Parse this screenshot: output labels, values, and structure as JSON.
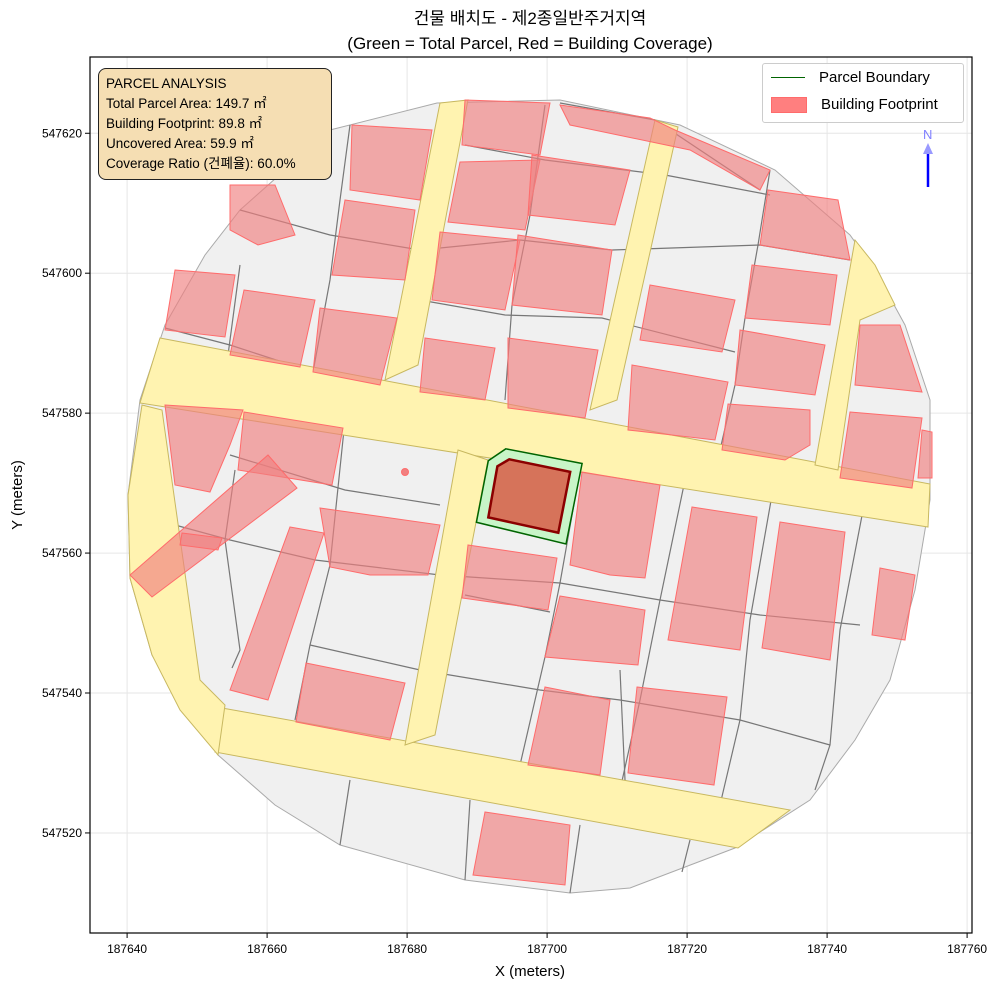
{
  "title": "건물 배치도 - 제2종일반주거지역",
  "subtitle": "(Green = Total Parcel, Red = Building Coverage)",
  "info": {
    "heading": "PARCEL ANALYSIS",
    "lines": [
      "Total Parcel Area: 149.7 ㎡",
      "Building Footprint: 89.8 ㎡",
      "Uncovered Area: 59.9 ㎡",
      "Coverage Ratio (건폐율): 60.0%"
    ]
  },
  "legend": [
    {
      "label": "Parcel Boundary",
      "color": "#006400"
    },
    {
      "label": "Building Footprint",
      "color": "#ff7f7f"
    }
  ],
  "north_label": "N",
  "chart_data": {
    "type": "map",
    "xlabel": "X (meters)",
    "ylabel": "Y (meters)",
    "xlim": [
      187634.7,
      187760.7
    ],
    "ylim": [
      547505.7,
      547630.9
    ],
    "xticks": [
      "187640",
      "187660",
      "187680",
      "187700",
      "187720",
      "187740",
      "187760"
    ],
    "yticks": [
      "547520",
      "547540",
      "547560",
      "547580",
      "547600",
      "547620"
    ],
    "grid": true,
    "legend_position": "top-right",
    "parcel": [
      [
        187694.1,
        547574.9
      ],
      [
        187705.0,
        547572.8
      ],
      [
        187702.7,
        547561.3
      ],
      [
        187689.9,
        547564.4
      ],
      [
        187691.6,
        547573.2
      ]
    ],
    "building": [
      [
        187694.6,
        547573.4
      ],
      [
        187703.3,
        547571.6
      ],
      [
        187701.6,
        547562.9
      ],
      [
        187691.6,
        547565.1
      ],
      [
        187692.9,
        547572.4
      ]
    ],
    "colors": {
      "parcel_fill": "#c8f5c8",
      "parcel_edge": "#006400",
      "building_fill": "#d9533e",
      "building_edge": "#8b0000",
      "road": "#fff3b0",
      "context": "#f0f0f0"
    }
  }
}
